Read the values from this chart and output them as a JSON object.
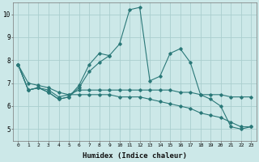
{
  "xlabel": "Humidex (Indice chaleur)",
  "background_color": "#cce8e8",
  "grid_color": "#aacece",
  "line_color": "#2a7878",
  "x": [
    0,
    1,
    2,
    3,
    4,
    5,
    6,
    7,
    8,
    9,
    10,
    11,
    12,
    13,
    14,
    15,
    16,
    17,
    18,
    19,
    20,
    21,
    22,
    23
  ],
  "series": [
    [
      7.8,
      6.7,
      6.8,
      6.6,
      6.3,
      6.4,
      6.9,
      7.8,
      8.3,
      8.2,
      8.7,
      10.2,
      10.3,
      7.1,
      7.3,
      8.3,
      8.5,
      7.9,
      6.5,
      6.3,
      6.0,
      5.1,
      5.0,
      5.1
    ],
    [
      7.8,
      6.7,
      6.8,
      6.6,
      6.3,
      6.4,
      6.8,
      7.5,
      7.9,
      8.2,
      null,
      null,
      null,
      null,
      null,
      null,
      null,
      null,
      null,
      null,
      null,
      null,
      null,
      null
    ],
    [
      7.8,
      6.7,
      6.8,
      6.7,
      6.4,
      6.5,
      6.7,
      6.7,
      6.7,
      6.7,
      6.7,
      6.7,
      6.7,
      6.7,
      6.7,
      6.7,
      6.6,
      6.6,
      6.5,
      6.5,
      6.5,
      6.4,
      6.4,
      6.4
    ],
    [
      7.8,
      7.0,
      6.9,
      6.8,
      6.6,
      6.5,
      6.5,
      6.5,
      6.5,
      6.5,
      6.4,
      6.4,
      6.4,
      6.3,
      6.2,
      6.1,
      6.0,
      5.9,
      5.7,
      5.6,
      5.5,
      5.3,
      5.1,
      5.1
    ]
  ],
  "ylim": [
    4.5,
    10.5
  ],
  "xlim": [
    -0.5,
    23.5
  ],
  "yticks": [
    5,
    6,
    7,
    8,
    9,
    10
  ],
  "xticks": [
    0,
    1,
    2,
    3,
    4,
    5,
    6,
    7,
    8,
    9,
    10,
    11,
    12,
    13,
    14,
    15,
    16,
    17,
    18,
    19,
    20,
    21,
    22,
    23
  ]
}
